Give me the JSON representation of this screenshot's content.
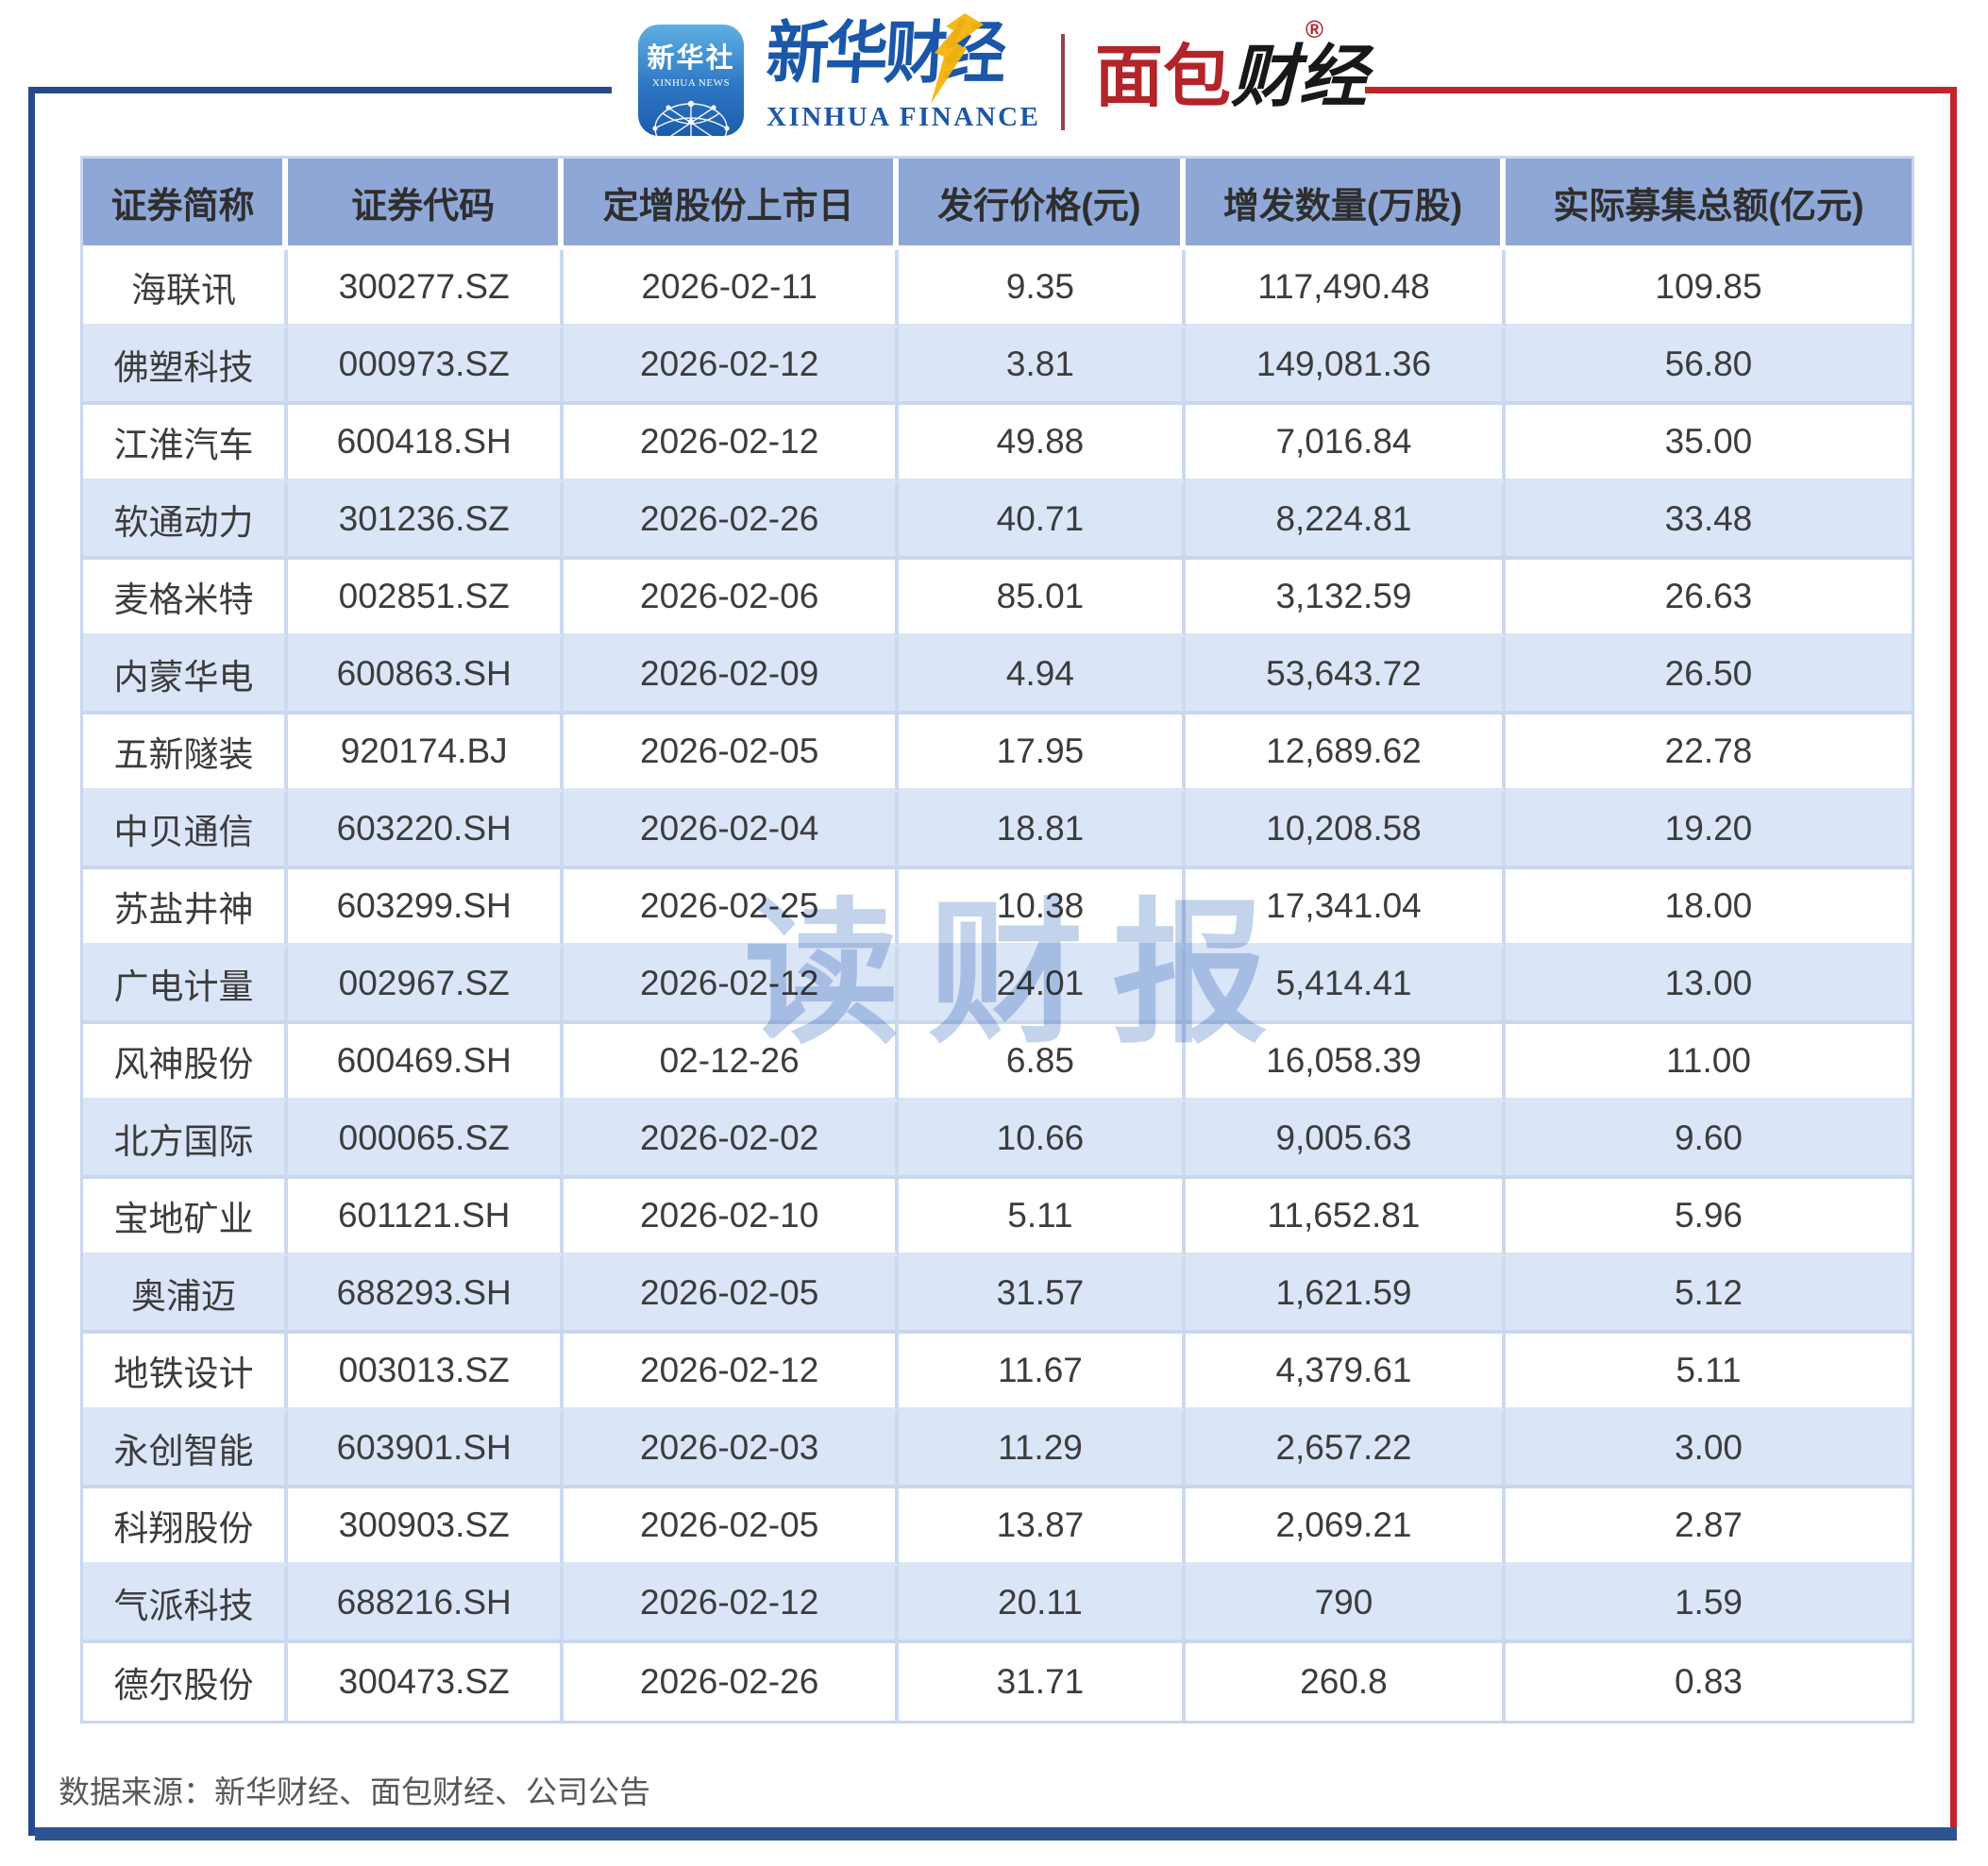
{
  "brand": {
    "xinhua_icon": {
      "cn": "新华社",
      "en": "XINHUA NEWS"
    },
    "xinhua_finance": {
      "cn": "新华财经",
      "en": "XINHUA FINANCE"
    },
    "mianbao": {
      "part_red": "面包",
      "part_black": "财经",
      "registered": "®"
    }
  },
  "chart_data": {
    "type": "table",
    "columns": [
      "证券简称",
      "证券代码",
      "定增股份上市日",
      "发行价格(元)",
      "增发数量(万股)",
      "实际募集总额(亿元)"
    ],
    "rows": [
      [
        "海联讯",
        "300277.SZ",
        "2026-02-11",
        "9.35",
        "117,490.48",
        "109.85"
      ],
      [
        "佛塑科技",
        "000973.SZ",
        "2026-02-12",
        "3.81",
        "149,081.36",
        "56.80"
      ],
      [
        "江淮汽车",
        "600418.SH",
        "2026-02-12",
        "49.88",
        "7,016.84",
        "35.00"
      ],
      [
        "软通动力",
        "301236.SZ",
        "2026-02-26",
        "40.71",
        "8,224.81",
        "33.48"
      ],
      [
        "麦格米特",
        "002851.SZ",
        "2026-02-06",
        "85.01",
        "3,132.59",
        "26.63"
      ],
      [
        "内蒙华电",
        "600863.SH",
        "2026-02-09",
        "4.94",
        "53,643.72",
        "26.50"
      ],
      [
        "五新隧装",
        "920174.BJ",
        "2026-02-05",
        "17.95",
        "12,689.62",
        "22.78"
      ],
      [
        "中贝通信",
        "603220.SH",
        "2026-02-04",
        "18.81",
        "10,208.58",
        "19.20"
      ],
      [
        "苏盐井神",
        "603299.SH",
        "2026-02-25",
        "10.38",
        "17,341.04",
        "18.00"
      ],
      [
        "广电计量",
        "002967.SZ",
        "2026-02-12",
        "24.01",
        "5,414.41",
        "13.00"
      ],
      [
        "风神股份",
        "600469.SH",
        "02-12-26",
        "6.85",
        "16,058.39",
        "11.00"
      ],
      [
        "北方国际",
        "000065.SZ",
        "2026-02-02",
        "10.66",
        "9,005.63",
        "9.60"
      ],
      [
        "宝地矿业",
        "601121.SH",
        "2026-02-10",
        "5.11",
        "11,652.81",
        "5.96"
      ],
      [
        "奥浦迈",
        "688293.SH",
        "2026-02-05",
        "31.57",
        "1,621.59",
        "5.12"
      ],
      [
        "地铁设计",
        "003013.SZ",
        "2026-02-12",
        "11.67",
        "4,379.61",
        "5.11"
      ],
      [
        "永创智能",
        "603901.SH",
        "2026-02-03",
        "11.29",
        "2,657.22",
        "3.00"
      ],
      [
        "科翔股份",
        "300903.SZ",
        "2026-02-05",
        "13.87",
        "2,069.21",
        "2.87"
      ],
      [
        "气派科技",
        "688216.SH",
        "2026-02-12",
        "20.11",
        "790",
        "1.59"
      ],
      [
        "德尔股份",
        "300473.SZ",
        "2026-02-26",
        "31.71",
        "260.8",
        "0.83"
      ]
    ]
  },
  "watermark": {
    "text": "读财报"
  },
  "footer": {
    "source": "数据来源：新华财经、面包财经、公司公告"
  },
  "colors": {
    "header_bg": "#8FA7D6",
    "row_alt_bg": "#DAE5F7",
    "navy": "#274A8C",
    "bar_navy": "#2B5490",
    "red": "#C2242B",
    "brand_blue": "#1B57A9",
    "mianbao_red": "#B2252A",
    "arrow_yellow": "#F6B40D"
  }
}
